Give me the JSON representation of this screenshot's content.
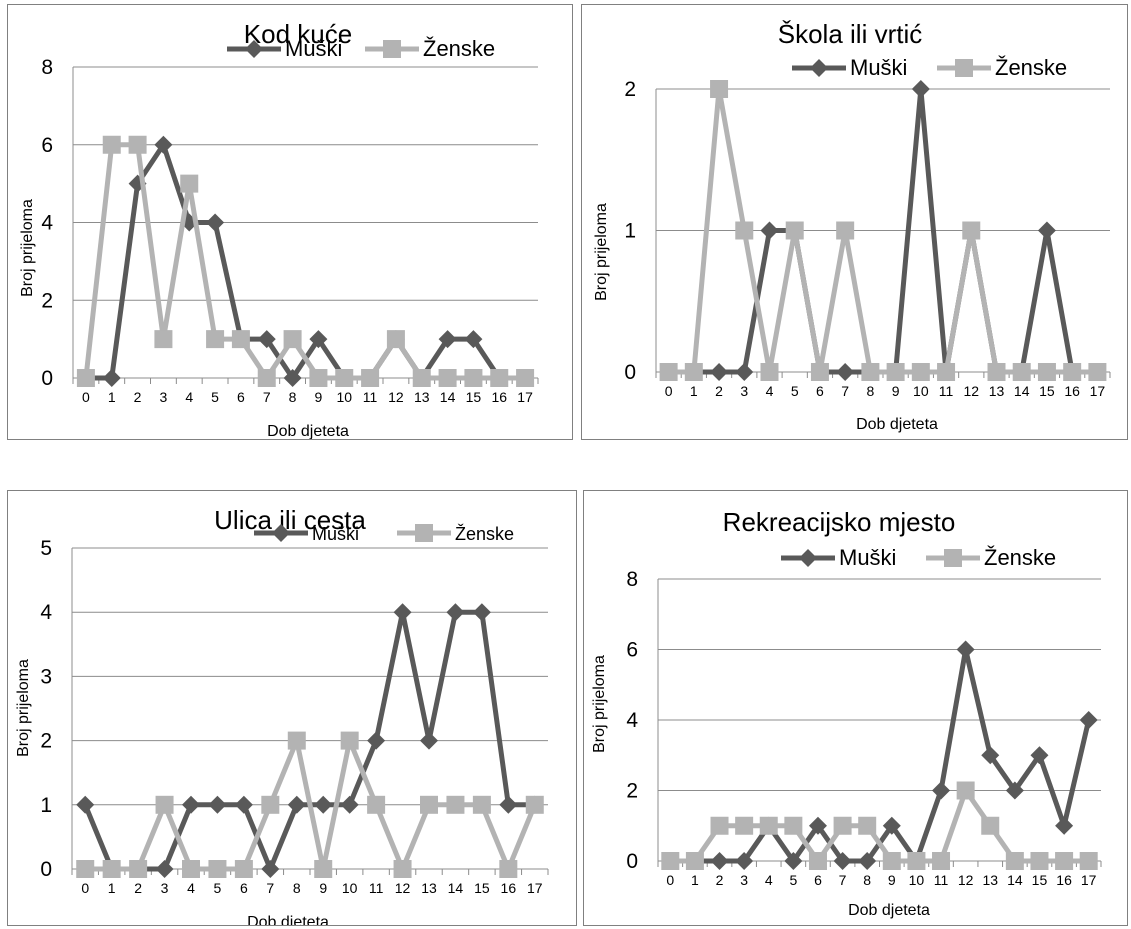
{
  "chart_data": [
    {
      "type": "line",
      "title": "Kod kuće",
      "xlabel": "Dob djeteta",
      "ylabel": "Broj prijeloma",
      "ylim": [
        0,
        8
      ],
      "yticks": [
        0,
        2,
        4,
        6,
        8
      ],
      "categories": [
        "0",
        "1",
        "2",
        "3",
        "4",
        "5",
        "6",
        "7",
        "8",
        "9",
        "10",
        "11",
        "12",
        "13",
        "14",
        "15",
        "16",
        "17"
      ],
      "series": [
        {
          "name": "Muški",
          "color": "#595959",
          "marker": "diamond",
          "values": [
            0,
            0,
            5,
            6,
            4,
            4,
            1,
            1,
            0,
            1,
            0,
            0,
            1,
            0,
            1,
            1,
            0,
            0
          ]
        },
        {
          "name": "Ženske",
          "color": "#b3b3b3",
          "marker": "square",
          "values": [
            0,
            6,
            6,
            1,
            5,
            1,
            1,
            0,
            1,
            0,
            0,
            0,
            1,
            0,
            0,
            0,
            0,
            0
          ]
        }
      ]
    },
    {
      "type": "line",
      "title": "Škola ili vrtić",
      "xlabel": "Dob djeteta",
      "ylabel": "Broj prijeloma",
      "ylim": [
        0,
        2
      ],
      "yticks": [
        0,
        1,
        2
      ],
      "categories": [
        "0",
        "1",
        "2",
        "3",
        "4",
        "5",
        "6",
        "7",
        "8",
        "9",
        "10",
        "11",
        "12",
        "13",
        "14",
        "15",
        "16",
        "17"
      ],
      "series": [
        {
          "name": "Muški",
          "color": "#595959",
          "marker": "diamond",
          "values": [
            0,
            0,
            0,
            0,
            1,
            1,
            0,
            0,
            0,
            0,
            2,
            0,
            1,
            0,
            0,
            1,
            0,
            0
          ]
        },
        {
          "name": "Ženske",
          "color": "#b3b3b3",
          "marker": "square",
          "values": [
            0,
            0,
            2,
            1,
            0,
            1,
            0,
            1,
            0,
            0,
            0,
            0,
            1,
            0,
            0,
            0,
            0,
            0
          ]
        }
      ]
    },
    {
      "type": "line",
      "title": "Ulica ili cesta",
      "xlabel": "Dob djeteta",
      "ylabel": "Broj prijeloma",
      "ylim": [
        0,
        5
      ],
      "yticks": [
        0,
        1,
        2,
        3,
        4,
        5
      ],
      "categories": [
        "0",
        "1",
        "2",
        "3",
        "4",
        "5",
        "6",
        "7",
        "8",
        "9",
        "10",
        "11",
        "12",
        "13",
        "14",
        "15",
        "16",
        "17"
      ],
      "series": [
        {
          "name": "Muški",
          "color": "#595959",
          "marker": "diamond",
          "values": [
            1,
            0,
            0,
            0,
            1,
            1,
            1,
            0,
            1,
            1,
            1,
            2,
            4,
            2,
            4,
            4,
            1,
            1
          ]
        },
        {
          "name": "Ženske",
          "color": "#b3b3b3",
          "marker": "square",
          "values": [
            0,
            0,
            0,
            1,
            0,
            0,
            0,
            1,
            2,
            0,
            2,
            1,
            0,
            1,
            1,
            1,
            0,
            1
          ]
        }
      ]
    },
    {
      "type": "line",
      "title": "Rekreacijsko mjesto",
      "xlabel": "Dob djeteta",
      "ylabel": "Broj prijeloma",
      "ylim": [
        0,
        8
      ],
      "yticks": [
        0,
        2,
        4,
        6,
        8
      ],
      "categories": [
        "0",
        "1",
        "2",
        "3",
        "4",
        "5",
        "6",
        "7",
        "8",
        "9",
        "10",
        "11",
        "12",
        "13",
        "14",
        "15",
        "16",
        "17"
      ],
      "series": [
        {
          "name": "Muški",
          "color": "#595959",
          "marker": "diamond",
          "values": [
            0,
            0,
            0,
            0,
            1,
            0,
            1,
            0,
            0,
            1,
            0,
            2,
            6,
            3,
            2,
            3,
            1,
            4
          ]
        },
        {
          "name": "Ženske",
          "color": "#b3b3b3",
          "marker": "square",
          "values": [
            0,
            0,
            1,
            1,
            1,
            1,
            0,
            1,
            1,
            0,
            0,
            0,
            2,
            1,
            0,
            0,
            0,
            0
          ]
        }
      ]
    }
  ]
}
